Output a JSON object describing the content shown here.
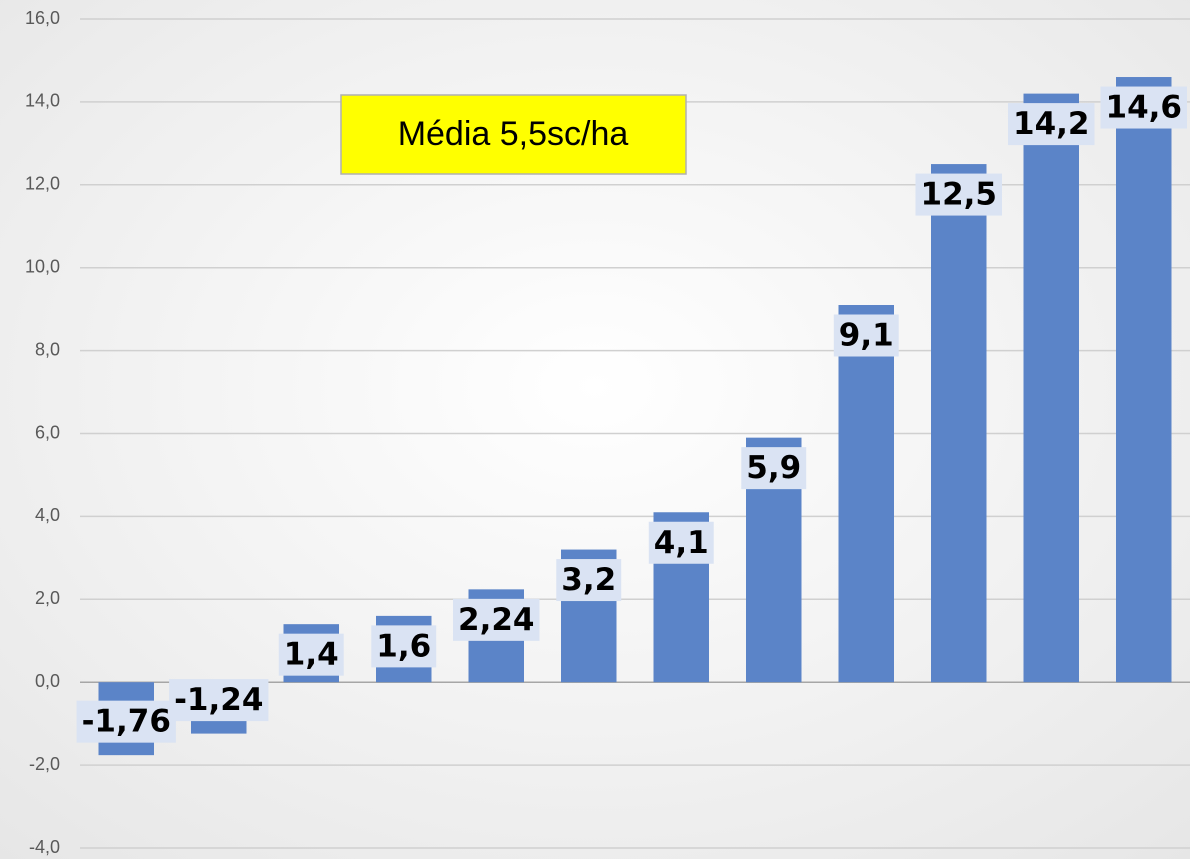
{
  "chart_data": {
    "type": "bar",
    "annotation": "Média 5,5sc/ha",
    "categories": [
      null,
      null,
      null,
      null,
      null,
      null,
      null,
      null,
      null,
      null,
      null,
      null
    ],
    "values": [
      -1.76,
      -1.24,
      1.4,
      1.6,
      2.24,
      3.2,
      4.1,
      5.9,
      9.1,
      12.5,
      14.2,
      14.6
    ],
    "value_labels": [
      "-1,76",
      "-1,24",
      "1,4",
      "1,6",
      "2,24",
      "3,2",
      "4,1",
      "5,9",
      "9,1",
      "12,5",
      "14,2",
      "14,6"
    ],
    "color": "#5b84c8",
    "ylim": [
      -4,
      16
    ],
    "yticks": [
      {
        "value": -4,
        "label": "-4,0"
      },
      {
        "value": -2,
        "label": "-2,0"
      },
      {
        "value": 0,
        "label": "0,0"
      },
      {
        "value": 2,
        "label": "2,0"
      },
      {
        "value": 4,
        "label": "4,0"
      },
      {
        "value": 6,
        "label": "6,0"
      },
      {
        "value": 8,
        "label": "8,0"
      },
      {
        "value": 10,
        "label": "10,0"
      },
      {
        "value": 12,
        "label": "12,0"
      },
      {
        "value": 14,
        "label": "14,0"
      },
      {
        "value": 16,
        "label": "16,0"
      }
    ],
    "grid": true
  }
}
